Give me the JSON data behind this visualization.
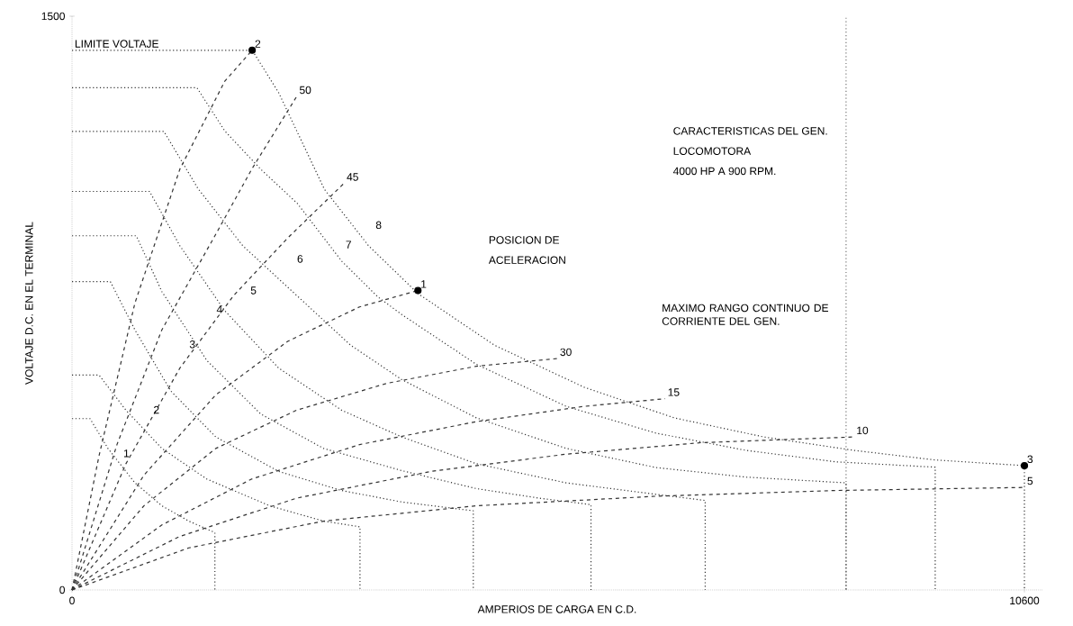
{
  "chart_data": {
    "type": "line",
    "xlabel": "AMPERIOS DE CARGA EN C.D.",
    "ylabel": "VOLTAJE D.C. EN EL TERMINAL",
    "xlim": [
      0,
      10800
    ],
    "ylim": [
      0,
      1500
    ],
    "xticks": [
      0,
      10600
    ],
    "yticks": [
      0,
      1500
    ],
    "line_style": "dotted",
    "series": [
      {
        "color": "#333333",
        "x": [
          0,
          2005,
          2300,
          2810,
          3300,
          3850,
          4700,
          5700,
          6700,
          7700,
          8700,
          9600,
          10600,
          10600
        ],
        "values": [
          1411,
          1411,
          1300,
          1047,
          900,
          775,
          640,
          530,
          450,
          400,
          365,
          340,
          325,
          0
        ]
      },
      {
        "color": "#333333",
        "x": [
          0,
          1390,
          1700,
          2100,
          2510,
          3000,
          3400,
          3670,
          4500,
          5500,
          6500,
          7500,
          8500,
          9607,
          9607
        ],
        "values": [
          1313,
          1313,
          1200,
          1100,
          1010,
          860,
          767,
          720,
          590,
          480,
          410,
          365,
          335,
          321,
          0
        ]
      },
      {
        "color": "#333333",
        "x": [
          0,
          1022,
          1400,
          1900,
          2500,
          3100,
          3670,
          4500,
          5500,
          6500,
          7500,
          8615,
          8615
        ],
        "values": [
          1199,
          1199,
          1050,
          900,
          770,
          640,
          550,
          450,
          370,
          320,
          295,
          280,
          0
        ]
      },
      {
        "color": "#333333",
        "x": [
          0,
          863,
          1200,
          1700,
          2300,
          3000,
          3670,
          4500,
          5500,
          6500,
          7047,
          7047
        ],
        "values": [
          1042,
          1042,
          900,
          730,
          580,
          470,
          400,
          330,
          280,
          250,
          234,
          0
        ]
      },
      {
        "color": "#333333",
        "x": [
          0,
          715,
          1000,
          1500,
          2100,
          2800,
          3670,
          4500,
          5200,
          5776,
          5776
        ],
        "values": [
          926,
          926,
          780,
          600,
          460,
          370,
          312,
          265,
          240,
          223,
          0
        ]
      },
      {
        "color": "#333333",
        "x": [
          0,
          427,
          700,
          1100,
          1600,
          2300,
          3000,
          3670,
          4466,
          4466
        ],
        "values": [
          806,
          806,
          680,
          520,
          400,
          310,
          260,
          230,
          207,
          0
        ]
      },
      {
        "color": "#333333",
        "x": [
          0,
          300,
          600,
          1000,
          1500,
          2200,
          2800,
          3205,
          3205
        ],
        "values": [
          562,
          562,
          470,
          370,
          290,
          220,
          180,
          165,
          0
        ]
      },
      {
        "color": "#333333",
        "x": [
          0,
          200,
          400,
          700,
          1000,
          1300,
          1590,
          1590
        ],
        "values": [
          448,
          448,
          370,
          280,
          220,
          180,
          150,
          0
        ]
      },
      {
        "color": "#333333",
        "line_style": "dashed",
        "x": [
          0,
          300,
          700,
          1200,
          1700,
          2005
        ],
        "values": [
          0,
          350,
          750,
          1100,
          1330,
          1411
        ]
      },
      {
        "color": "#333333",
        "line_style": "dashed",
        "x": [
          0,
          500,
          1000,
          1600,
          2000,
          2500
        ],
        "values": [
          0,
          380,
          680,
          930,
          1100,
          1290
        ]
      },
      {
        "color": "#333333",
        "line_style": "dashed",
        "x": [
          0,
          600,
          1200,
          1800,
          2400,
          3027
        ],
        "values": [
          0,
          330,
          580,
          770,
          920,
          1063
        ]
      },
      {
        "color": "#333333",
        "line_style": "dashed",
        "x": [
          0,
          800,
          1600,
          2400,
          3200,
          3850
        ],
        "values": [
          0,
          300,
          510,
          650,
          740,
          783
        ]
      },
      {
        "color": "#333333",
        "line_style": "dashed",
        "x": [
          0,
          800,
          1600,
          2500,
          3500,
          4500,
          5400
        ],
        "values": [
          0,
          220,
          370,
          470,
          540,
          585,
          605
        ]
      },
      {
        "color": "#333333",
        "line_style": "dashed",
        "x": [
          0,
          1000,
          2000,
          3200,
          4500,
          5700,
          6600
        ],
        "values": [
          0,
          170,
          290,
          380,
          440,
          480,
          500
        ]
      },
      {
        "color": "#333333",
        "line_style": "dashed",
        "x": [
          0,
          1200,
          2500,
          4000,
          5500,
          7000,
          8700
        ],
        "values": [
          0,
          140,
          240,
          310,
          355,
          385,
          400
        ]
      },
      {
        "color": "#333333",
        "line_style": "dashed",
        "x": [
          0,
          1300,
          2800,
          4500,
          6500,
          8500,
          10600
        ],
        "values": [
          0,
          110,
          180,
          220,
          245,
          260,
          268
        ]
      },
      {
        "type": "scatter",
        "marker": "circle",
        "color": "#000000",
        "x": [
          2005,
          3850,
          10600
        ],
        "values": [
          1411,
          783,
          325
        ]
      }
    ],
    "ref_lines": [
      {
        "axis": "x",
        "value": 8615,
        "label": "MAXIMO RANGO CONTINUO DE CORRIENTE DEL GEN.",
        "color": "#777777",
        "line_style": "dotted"
      }
    ],
    "annotations": [
      {
        "text": "LIMITE VOLTAJE",
        "x": 0,
        "y": 1411
      },
      {
        "text": "2",
        "x": 2005,
        "y": 1411
      },
      {
        "text": "1",
        "x": 3850,
        "y": 783
      },
      {
        "text": "3",
        "x": 10600,
        "y": 325
      },
      {
        "text": "50",
        "x": 2500,
        "y": 1290
      },
      {
        "text": "45",
        "x": 3027,
        "y": 1063
      },
      {
        "text": "30",
        "x": 5400,
        "y": 605
      },
      {
        "text": "15",
        "x": 6600,
        "y": 500
      },
      {
        "text": "10",
        "x": 8700,
        "y": 400
      },
      {
        "text": "5",
        "x": 10600,
        "y": 268
      },
      "1",
      "2",
      "3",
      "4",
      "5",
      "6",
      "7",
      "8",
      "POSICION DE",
      "ACELERACION",
      "CARACTERISTICAS DEL GEN.",
      "LOCOMOTORA",
      "4000 HP A 900 RPM."
    ]
  }
}
